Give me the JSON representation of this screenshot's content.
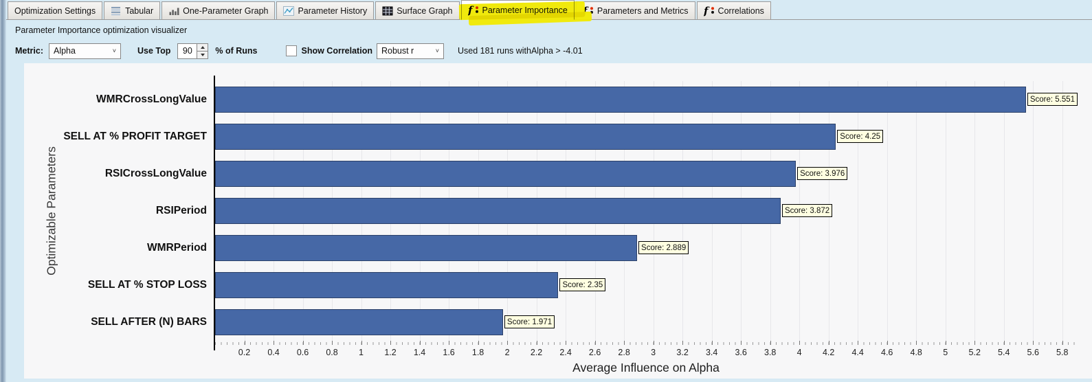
{
  "tabs": [
    {
      "label": "Optimization Settings",
      "icon": "none",
      "selected": false,
      "highlighted": false
    },
    {
      "label": "Tabular",
      "icon": "list-icon",
      "selected": false,
      "highlighted": false
    },
    {
      "label": "One-Parameter Graph",
      "icon": "bar-chart-icon",
      "selected": false,
      "highlighted": false
    },
    {
      "label": "Parameter History",
      "icon": "line-chart-icon",
      "selected": false,
      "highlighted": false
    },
    {
      "label": "Surface Graph",
      "icon": "grid-icon",
      "selected": false,
      "highlighted": false
    },
    {
      "label": "Parameter Importance",
      "icon": "function-icon",
      "selected": true,
      "highlighted": true
    },
    {
      "label": "Parameters and Metrics",
      "icon": "function-icon",
      "selected": false,
      "highlighted": false
    },
    {
      "label": "Correlations",
      "icon": "function-icon",
      "selected": false,
      "highlighted": false
    }
  ],
  "subtitle": "Parameter Importance optimization visualizer",
  "toolbar": {
    "metric_label": "Metric:",
    "metric_value": "Alpha",
    "use_top_label": "Use Top",
    "use_top_value": "90",
    "percent_runs_label": "% of Runs",
    "show_correlation_label": "Show Correlation",
    "show_correlation_checked": false,
    "correlation_method_value": "Robust r",
    "runs_summary": "Used 181 runs withAlpha > -4.01"
  },
  "chart_data": {
    "type": "bar",
    "orientation": "horizontal",
    "title": "",
    "xlabel": "Average Influence on Alpha",
    "ylabel": "Optimizable Parameters",
    "categories": [
      "WMRCrossLongValue",
      "SELL AT % PROFIT TARGET",
      "RSICrossLongValue",
      "RSIPeriod",
      "WMRPeriod",
      "SELL AT % STOP LOSS",
      "SELL AFTER (N) BARS"
    ],
    "values": [
      5.551,
      4.25,
      3.976,
      3.872,
      2.889,
      2.35,
      1.971
    ],
    "score_labels": [
      "Score: 5.551",
      "Score: 4.25",
      "Score: 3.976",
      "Score: 3.872",
      "Score: 2.889",
      "Score: 2.35",
      "Score: 1.971"
    ],
    "xlim": [
      0,
      5.9
    ],
    "xtick_labels": [
      "0.2",
      "0.4",
      "0.6",
      "0.8",
      "1",
      "1.2",
      "1.4",
      "1.6",
      "1.8",
      "2",
      "2.2",
      "2.4",
      "2.6",
      "2.8",
      "3",
      "3.2",
      "3.4",
      "3.6",
      "3.8",
      "4",
      "4.2",
      "4.4",
      "4.6",
      "4.8",
      "5",
      "5.2",
      "5.4",
      "5.6",
      "5.8"
    ],
    "grid": true,
    "legend": false
  },
  "colors": {
    "background": "#d7eaf4",
    "panel": "#f7f7f8",
    "bar_fill": "#4668a6",
    "bar_border": "#2c4168",
    "score_bg": "#ffffe1",
    "highlight_yellow": "#f2ea00"
  }
}
